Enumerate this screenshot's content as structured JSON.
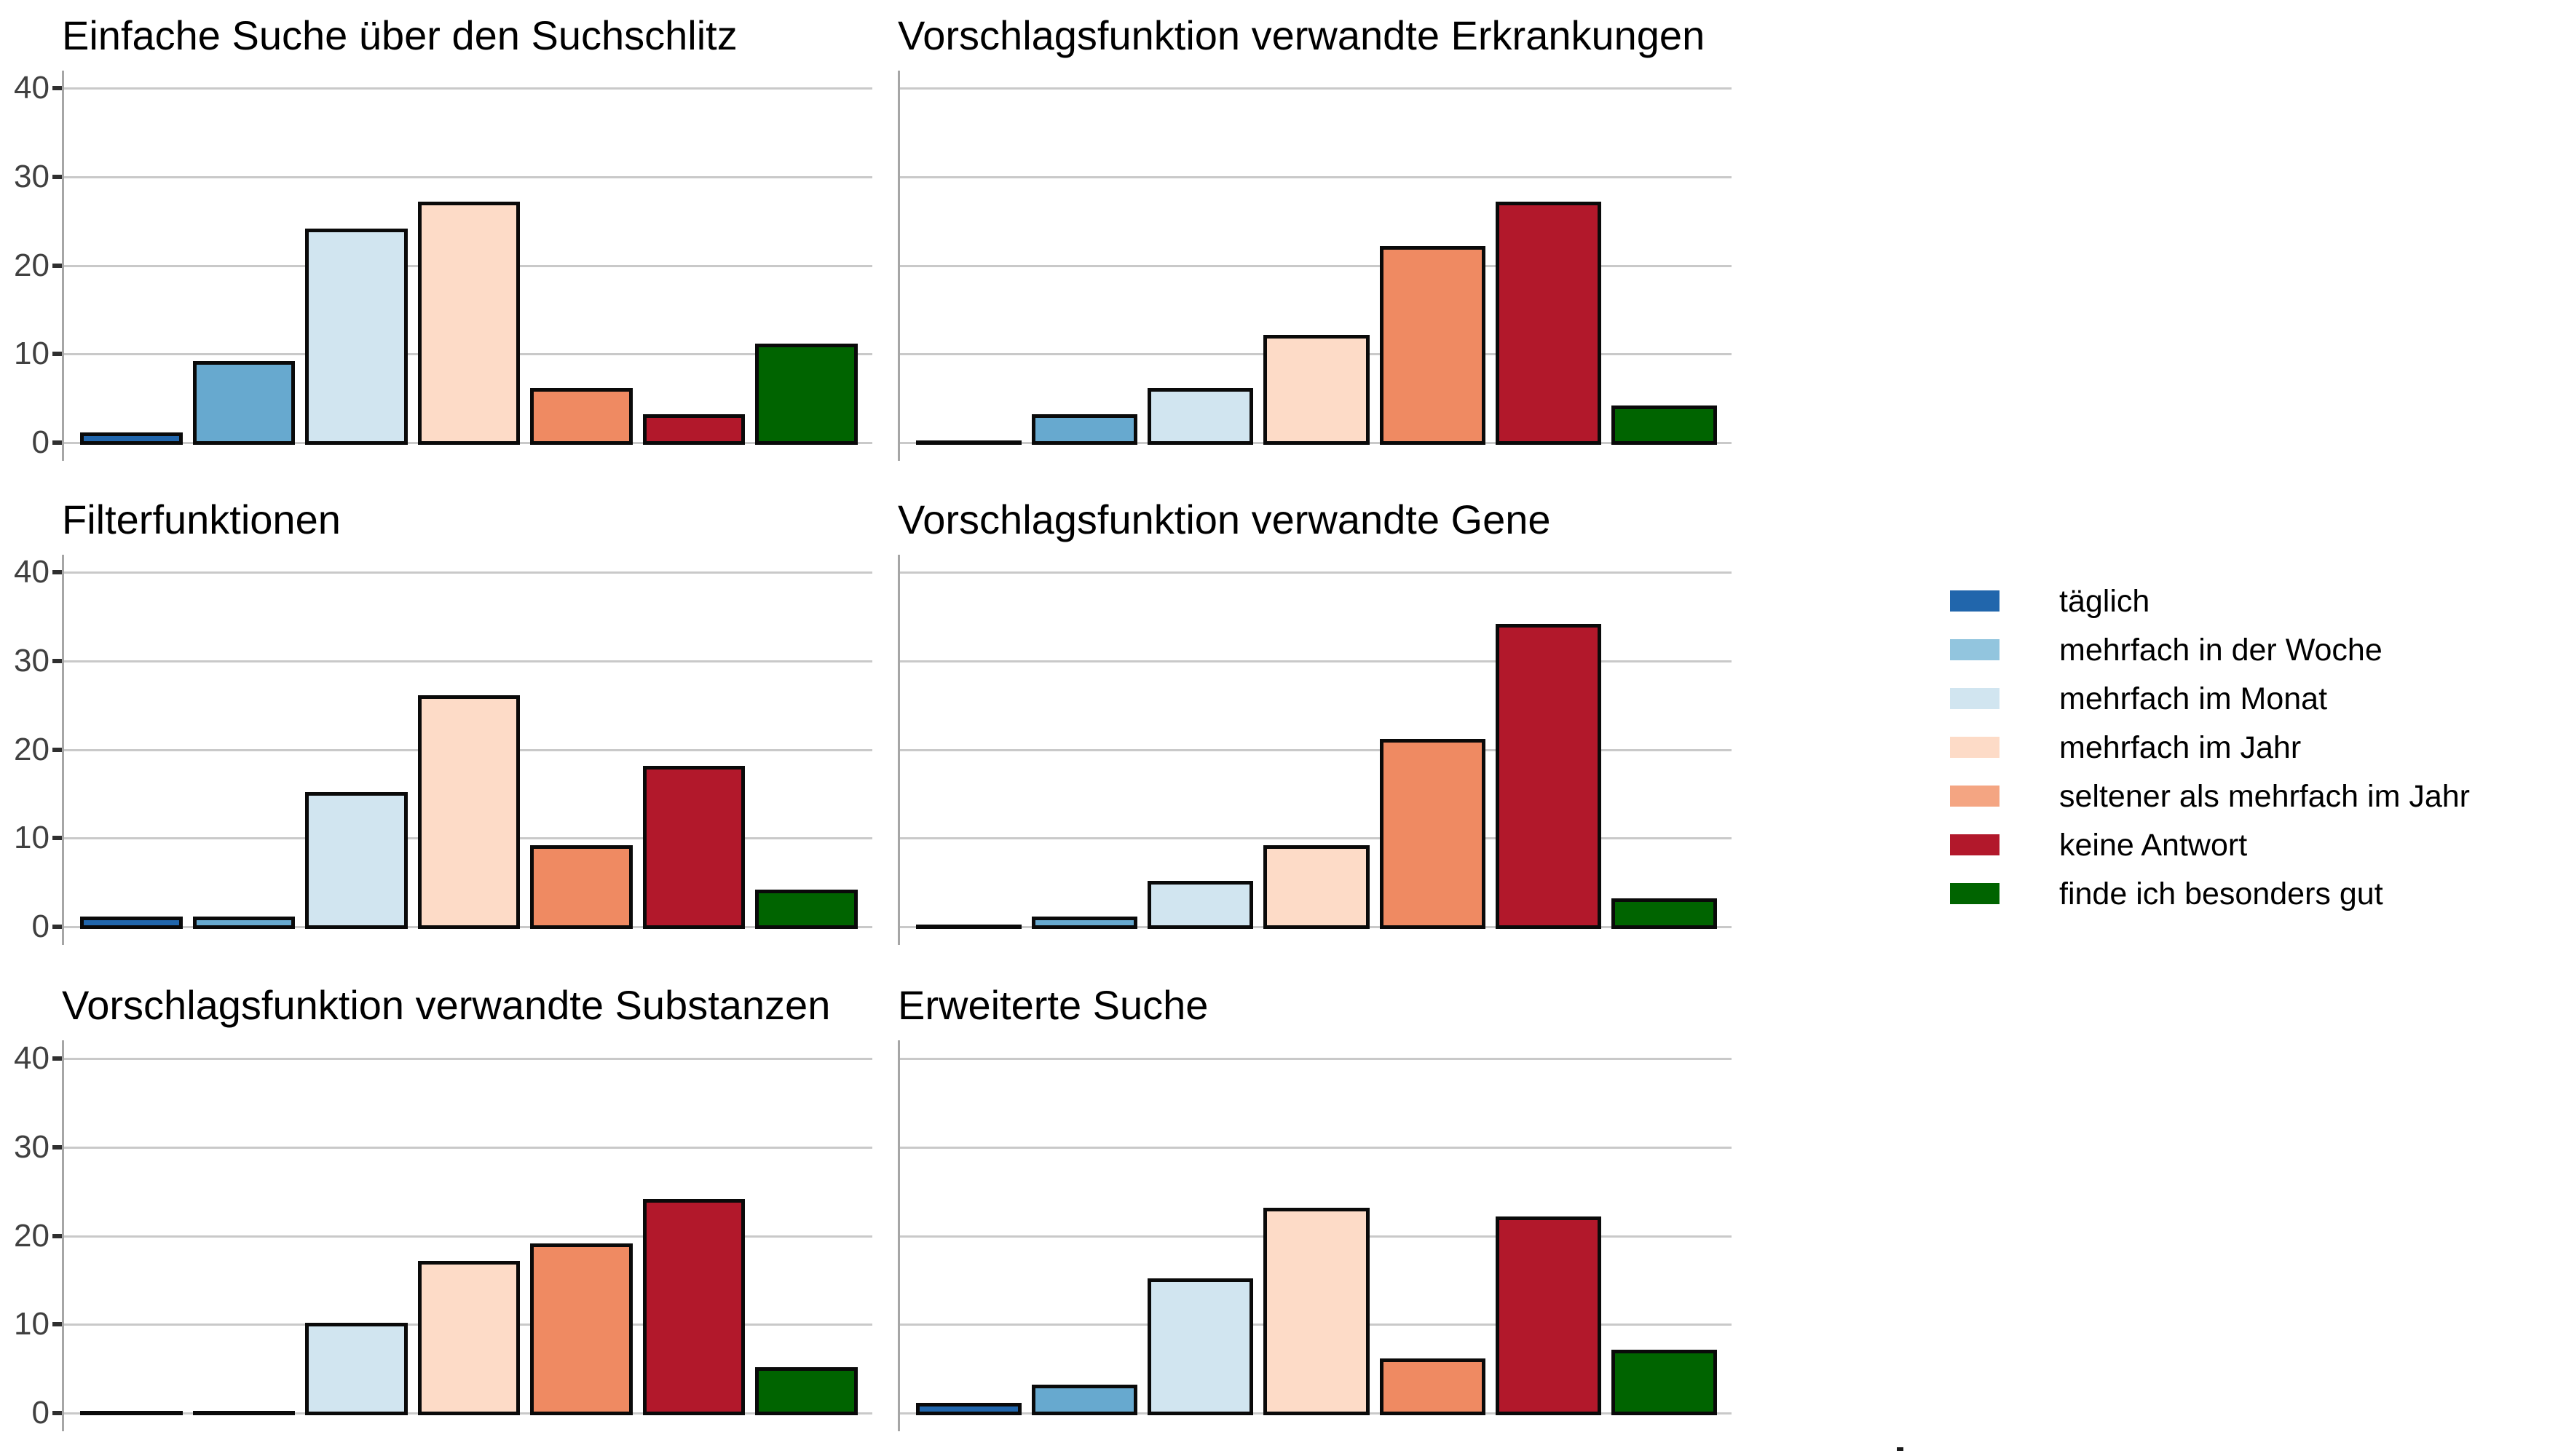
{
  "figure": {
    "background": "#ffffff",
    "stray_mark": "-"
  },
  "chart_data": {
    "type": "bar",
    "layout_hint": "3 rows x 2 columns of facet panels, shared y-axis labels on left column only, legend on right side, horizontal gridlines on",
    "categories": [
      "täglich",
      "mehrfach in der Woche",
      "mehrfach im Monat",
      "mehrfach im Jahr",
      "seltener als mehrfach im Jahr",
      "keine Antwort",
      "finde ich besonders gut"
    ],
    "bar_colors": [
      "#2166ac",
      "#67a9cf",
      "#d1e5f0",
      "#fddbc7",
      "#ef8a62",
      "#b2182b",
      "#006400"
    ],
    "bar_border_color": "#0a0a0a",
    "gridline_color": "#c9c9c9",
    "axis_line_color": "#a6a6a6",
    "ylim": [
      0,
      42
    ],
    "yticks": [
      "0",
      "10",
      "20",
      "30",
      "40"
    ],
    "ytick_values": [
      0,
      10,
      20,
      30,
      40
    ],
    "xlabel": "",
    "ylabel": "",
    "panels": [
      {
        "title": "Einfache Suche über den Suchschlitz",
        "values": [
          1,
          9,
          24,
          27,
          6,
          3,
          11
        ]
      },
      {
        "title": "Vorschlagsfunktion verwandte Erkrankungen",
        "values": [
          0,
          3,
          6,
          12,
          22,
          27,
          4
        ]
      },
      {
        "title": "Filterfunktionen",
        "values": [
          1,
          1,
          15,
          26,
          9,
          18,
          4
        ]
      },
      {
        "title": "Vorschlagsfunktion verwandte Gene",
        "values": [
          0,
          1,
          5,
          9,
          21,
          34,
          3
        ]
      },
      {
        "title": "Vorschlagsfunktion verwandte Substanzen",
        "values": [
          0,
          0,
          10,
          17,
          19,
          24,
          5
        ]
      },
      {
        "title": "Erweiterte Suche",
        "values": [
          1,
          3,
          15,
          23,
          6,
          22,
          7
        ]
      }
    ],
    "legend": {
      "position": "right",
      "items": [
        {
          "label": "täglich",
          "color": "#2166ac"
        },
        {
          "label": "mehrfach in der Woche",
          "color": "#92c5de"
        },
        {
          "label": "mehrfach im Monat",
          "color": "#d1e5f0"
        },
        {
          "label": "mehrfach im Jahr",
          "color": "#fddbc7"
        },
        {
          "label": "seltener als mehrfach im Jahr",
          "color": "#f4a582"
        },
        {
          "label": "keine Antwort",
          "color": "#b2182b"
        },
        {
          "label": "finde ich besonders gut",
          "color": "#006400"
        }
      ]
    }
  }
}
